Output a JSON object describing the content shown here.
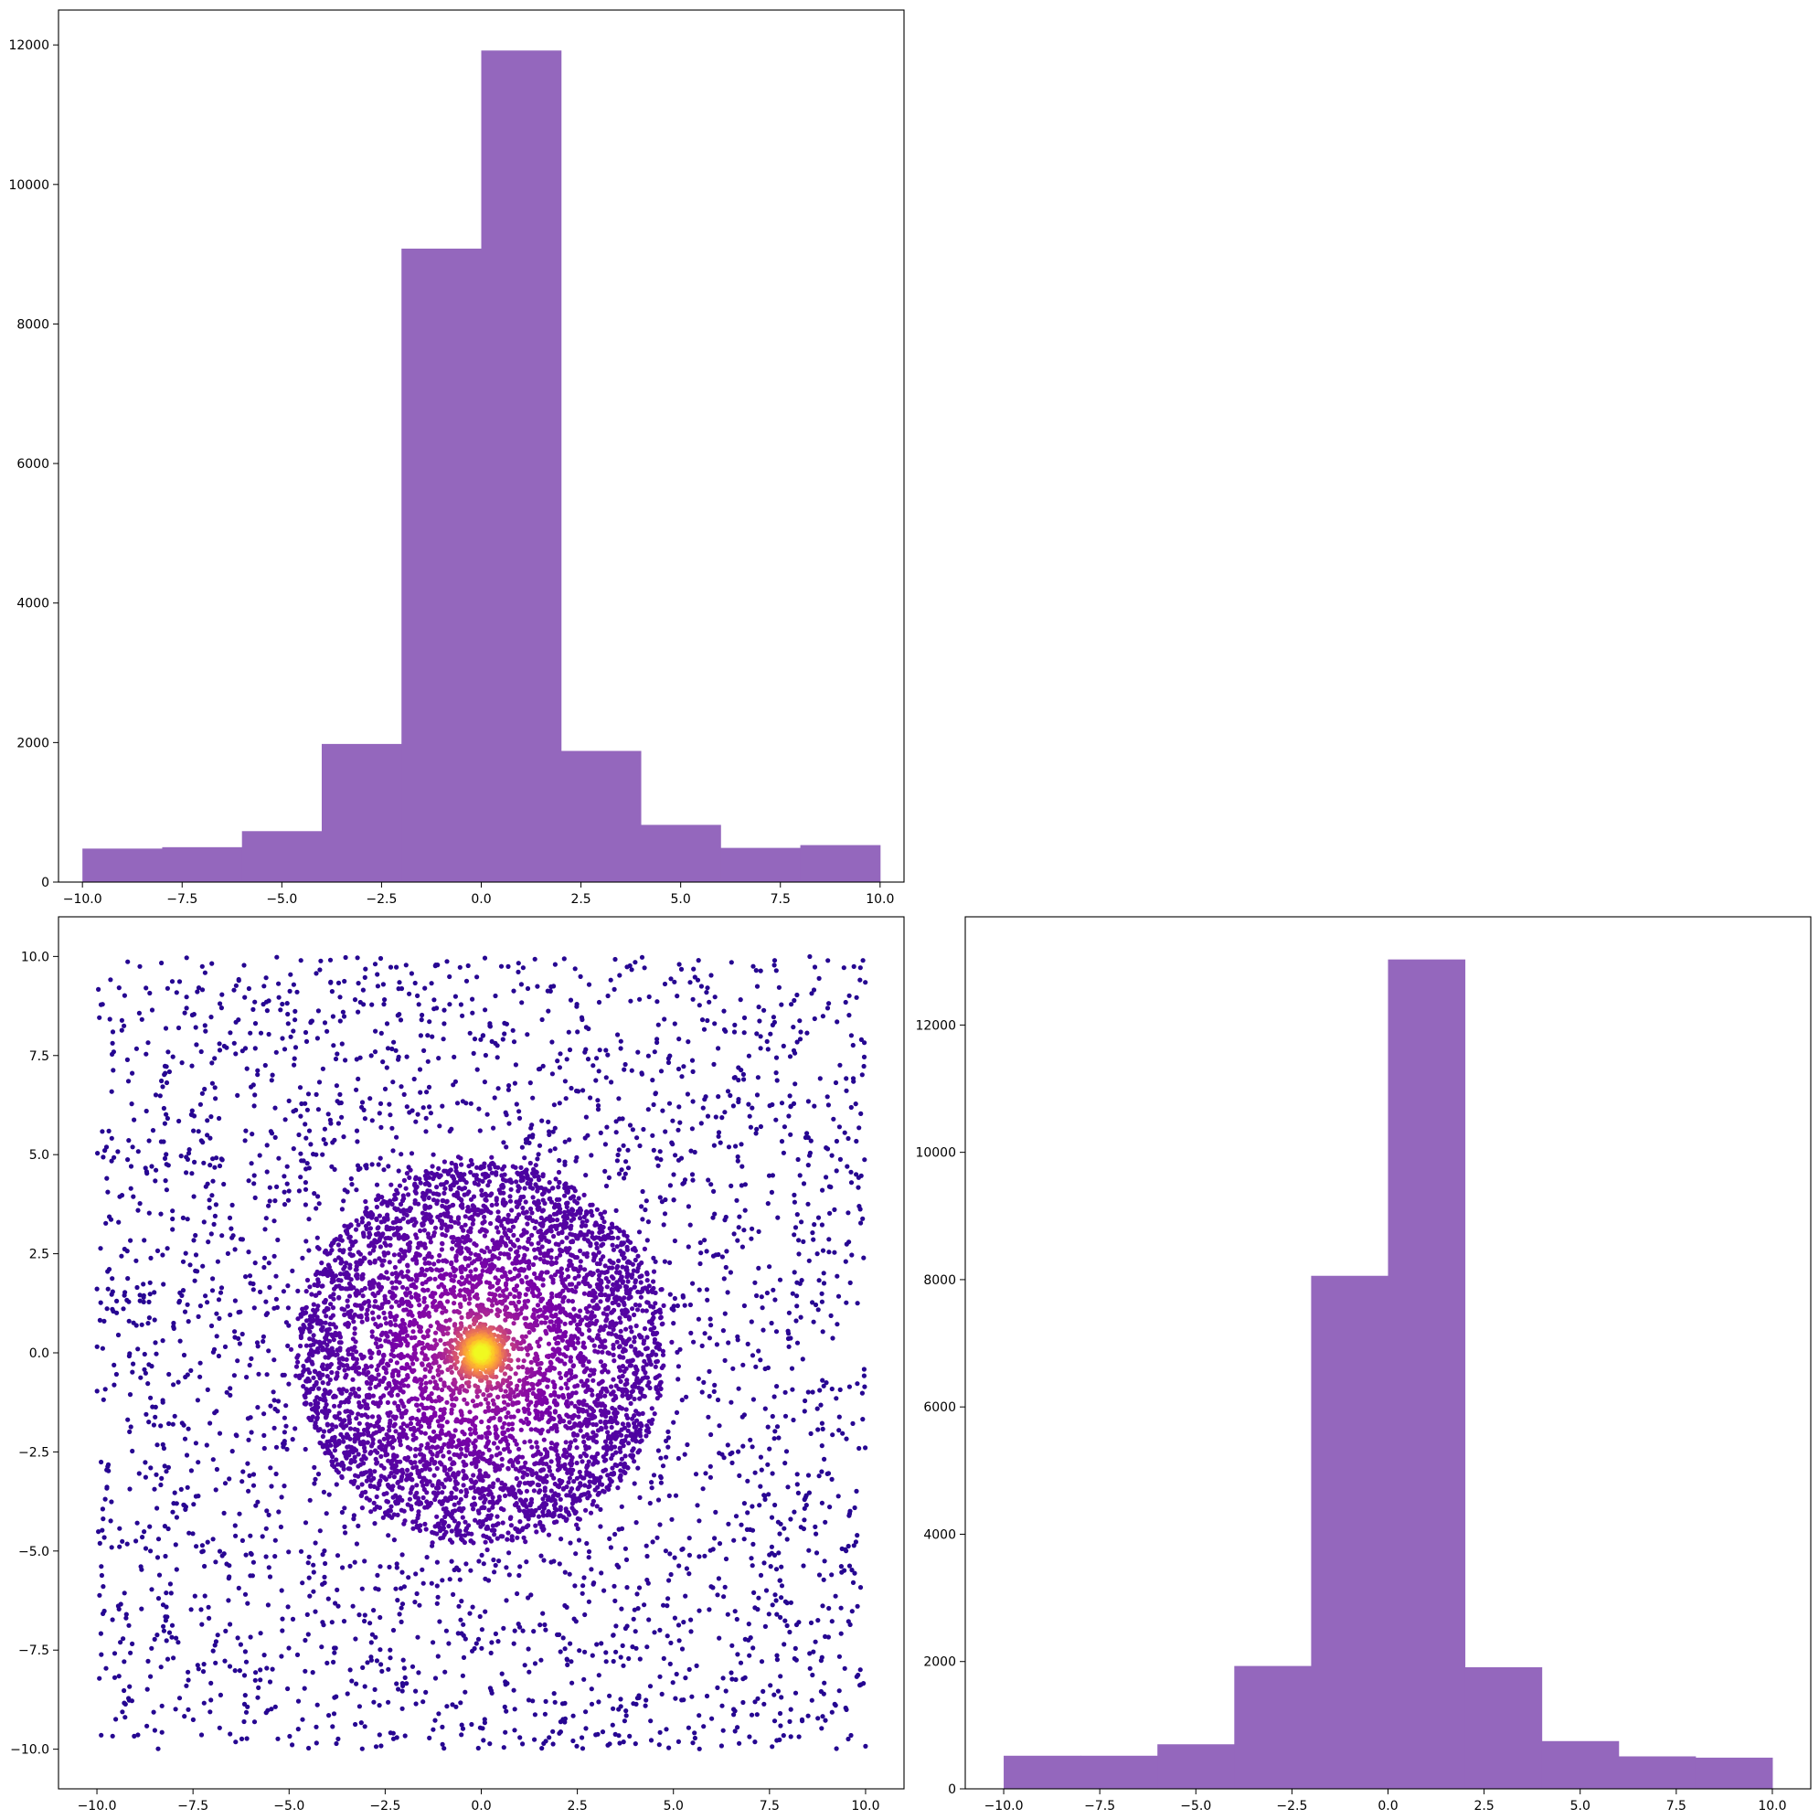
{
  "chart_data": [
    {
      "panel": "top-left",
      "type": "bar",
      "subtype": "histogram",
      "bin_edges": [
        -10,
        -8,
        -6,
        -4,
        -2,
        0,
        2,
        4,
        6,
        8,
        10
      ],
      "values": [
        480,
        500,
        730,
        1980,
        9080,
        11920,
        1880,
        820,
        490,
        530
      ],
      "xlim": [
        -10.6,
        10.6
      ],
      "ylim": [
        0,
        12500
      ],
      "xticks": [
        -10.0,
        -7.5,
        -5.0,
        -2.5,
        0.0,
        2.5,
        5.0,
        7.5,
        10.0
      ],
      "xtick_labels": [
        "−10.0",
        "−7.5",
        "−5.0",
        "−2.5",
        "0.0",
        "2.5",
        "5.0",
        "7.5",
        "10.0"
      ],
      "yticks": [
        0,
        2000,
        4000,
        6000,
        8000,
        10000,
        12000
      ],
      "ytick_labels": [
        "0",
        "2000",
        "4000",
        "6000",
        "8000",
        "10000",
        "12000"
      ],
      "color": "#9467bd",
      "title": "",
      "xlabel": "",
      "ylabel": "",
      "grid": false
    },
    {
      "panel": "bottom-left",
      "type": "scatter",
      "description_points": {
        "background": {
          "distribution": "uniform",
          "x_range": [
            -10,
            10
          ],
          "y_range": [
            -10,
            10
          ],
          "count": 3200
        },
        "disk": {
          "distribution": "uniform-disk",
          "center": [
            0,
            0
          ],
          "radius": 4.8,
          "count": 4200
        },
        "core": {
          "distribution": "gaussian",
          "center": [
            0,
            0
          ],
          "sigma": 0.3,
          "count": 400
        }
      },
      "xlim": [
        -11.0,
        11.0
      ],
      "ylim": [
        -11.0,
        11.0
      ],
      "xticks": [
        -10.0,
        -7.5,
        -5.0,
        -2.5,
        0.0,
        2.5,
        5.0,
        7.5,
        10.0
      ],
      "xtick_labels": [
        "−10.0",
        "−7.5",
        "−5.0",
        "−2.5",
        "0.0",
        "2.5",
        "5.0",
        "7.5",
        "10.0"
      ],
      "yticks": [
        10.0,
        7.5,
        5.0,
        2.5,
        0.0,
        -2.5,
        -5.0,
        -7.5,
        -10.0
      ],
      "ytick_labels": [
        "10.0",
        "7.5",
        "5.0",
        "2.5",
        "0.0",
        "−2.5",
        "−5.0",
        "−7.5",
        "−10.0"
      ],
      "colormap": "plasma",
      "color_low": "#2a0593",
      "color_high": "#f0f921",
      "title": "",
      "xlabel": "",
      "ylabel": "",
      "grid": false
    },
    {
      "panel": "bottom-right",
      "type": "bar",
      "subtype": "histogram",
      "bin_edges": [
        -10,
        -8,
        -6,
        -4,
        -2,
        0,
        2,
        4,
        6,
        8,
        10
      ],
      "values": [
        520,
        520,
        700,
        1930,
        8060,
        13030,
        1910,
        750,
        510,
        490
      ],
      "xlim": [
        -11.0,
        11.0
      ],
      "ylim": [
        0,
        13700
      ],
      "xticks": [
        -10.0,
        -7.5,
        -5.0,
        -2.5,
        0.0,
        2.5,
        5.0,
        7.5,
        10.0
      ],
      "xtick_labels": [
        "−10.0",
        "−7.5",
        "−5.0",
        "−2.5",
        "0.0",
        "2.5",
        "5.0",
        "7.5",
        "10.0"
      ],
      "yticks": [
        0,
        2000,
        4000,
        6000,
        8000,
        10000,
        12000
      ],
      "ytick_labels": [
        "0",
        "2000",
        "4000",
        "6000",
        "8000",
        "10000",
        "12000"
      ],
      "color": "#9467bd",
      "title": "",
      "xlabel": "",
      "ylabel": "",
      "grid": false
    }
  ]
}
